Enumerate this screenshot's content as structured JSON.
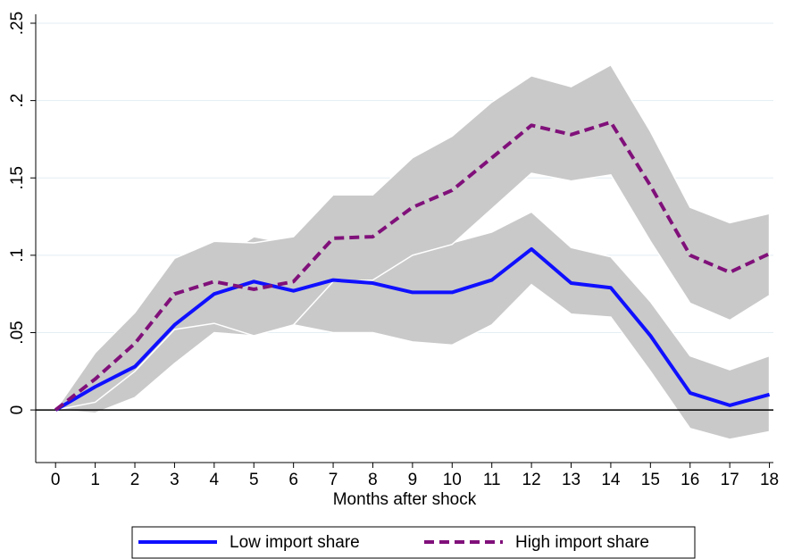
{
  "chart_data": {
    "type": "line",
    "x_label": "Months after shock",
    "x": [
      0,
      1,
      2,
      3,
      4,
      5,
      6,
      7,
      8,
      9,
      10,
      11,
      12,
      13,
      14,
      15,
      16,
      17,
      18
    ],
    "xlim": [
      -0.5,
      18.1
    ],
    "xticks": [
      0,
      1,
      2,
      3,
      4,
      5,
      6,
      7,
      8,
      9,
      10,
      11,
      12,
      13,
      14,
      15,
      16,
      17,
      18
    ],
    "ylim": [
      -0.034,
      0.25
    ],
    "yticks": [
      0,
      {
        "value": 0.05,
        "label": ".05"
      },
      {
        "value": 0.1,
        "label": ".1"
      },
      {
        "value": 0.15,
        "label": ".15"
      },
      {
        "value": 0.2,
        "label": ".2"
      },
      {
        "value": 0.25,
        "label": ".25"
      }
    ],
    "grid": true,
    "hline": 0,
    "band_color": "#c9c9c9",
    "legend": "bottom",
    "series": [
      {
        "name": "Low import share",
        "color": "#1010ff",
        "dash": false,
        "values": [
          0,
          0.015,
          0.028,
          0.055,
          0.075,
          0.083,
          0.077,
          0.084,
          0.082,
          0.076,
          0.076,
          0.084,
          0.104,
          0.082,
          0.079,
          0.048,
          0.011,
          0.003,
          0.01
        ],
        "lower": [
          0,
          -0.002,
          0.008,
          0.03,
          0.05,
          0.048,
          0.055,
          0.05,
          0.05,
          0.044,
          0.042,
          0.055,
          0.081,
          0.062,
          0.06,
          0.025,
          -0.012,
          -0.019,
          -0.014
        ],
        "upper": [
          0,
          0.03,
          0.048,
          0.08,
          0.095,
          0.112,
          0.107,
          0.118,
          0.115,
          0.108,
          0.108,
          0.115,
          0.128,
          0.105,
          0.099,
          0.07,
          0.035,
          0.026,
          0.035
        ]
      },
      {
        "name": "High import share",
        "color": "#80107a",
        "dash": true,
        "values": [
          0,
          0.02,
          0.043,
          0.075,
          0.083,
          0.078,
          0.083,
          0.111,
          0.112,
          0.131,
          0.142,
          0.163,
          0.184,
          0.178,
          0.186,
          0.145,
          0.1,
          0.089,
          0.101
        ],
        "lower": [
          0,
          0.005,
          0.025,
          0.052,
          0.056,
          0.048,
          0.055,
          0.083,
          0.084,
          0.1,
          0.107,
          0.13,
          0.153,
          0.148,
          0.152,
          0.109,
          0.069,
          0.058,
          0.074
        ],
        "upper": [
          0,
          0.037,
          0.063,
          0.098,
          0.109,
          0.108,
          0.112,
          0.139,
          0.139,
          0.163,
          0.177,
          0.199,
          0.216,
          0.209,
          0.223,
          0.18,
          0.131,
          0.121,
          0.127
        ]
      }
    ]
  }
}
